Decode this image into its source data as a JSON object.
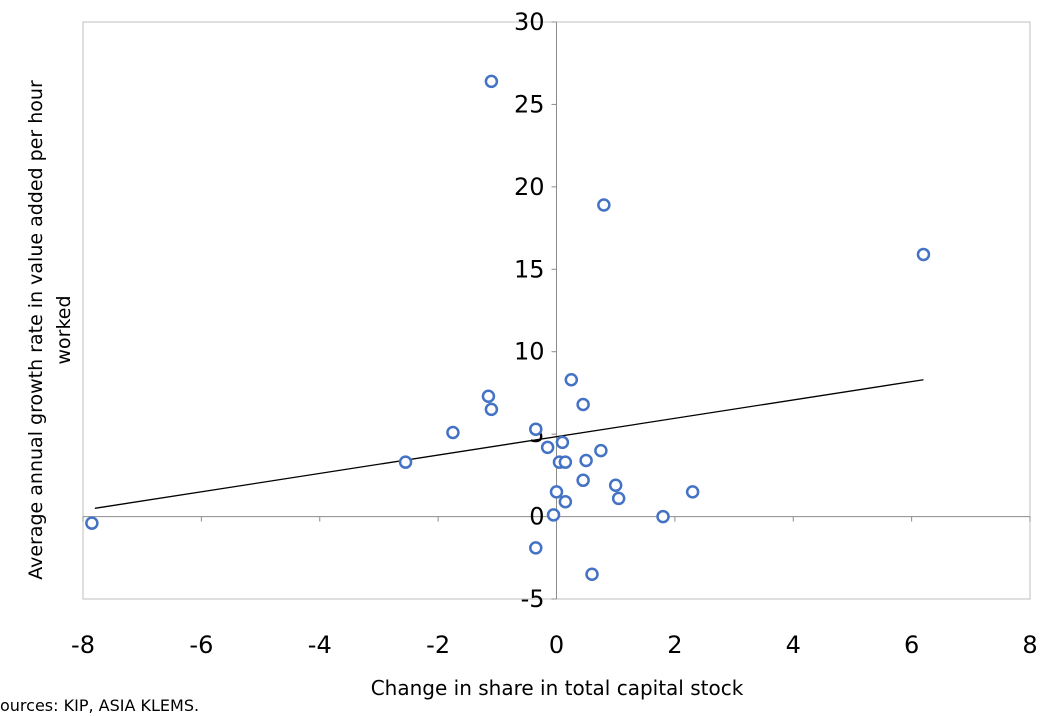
{
  "chart_data": {
    "type": "scatter",
    "title": "",
    "xlabel": "Change in share in total capital stock",
    "ylabel_lines": [
      "Average annual growth rate in value added per hour",
      "worked"
    ],
    "xlim": [
      -8,
      8
    ],
    "ylim": [
      -5,
      30
    ],
    "x_ticks": [
      -8,
      -6,
      -4,
      -2,
      0,
      2,
      4,
      6,
      8
    ],
    "y_ticks": [
      -5,
      0,
      5,
      10,
      15,
      20,
      25,
      30
    ],
    "grid": false,
    "marker_color": "#4472C4",
    "trendline_color": "#000000",
    "trendline": {
      "x": [
        -7.8,
        6.2
      ],
      "y": [
        0.5,
        8.3
      ]
    },
    "points": [
      {
        "x": -7.85,
        "y": -0.4
      },
      {
        "x": -2.55,
        "y": 3.3
      },
      {
        "x": -1.75,
        "y": 5.1
      },
      {
        "x": -1.15,
        "y": 7.3
      },
      {
        "x": -1.1,
        "y": 6.5
      },
      {
        "x": -1.1,
        "y": 26.4
      },
      {
        "x": -0.35,
        "y": 5.3
      },
      {
        "x": -0.15,
        "y": 4.2
      },
      {
        "x": -0.05,
        "y": 0.1
      },
      {
        "x": 0.0,
        "y": 1.5
      },
      {
        "x": 0.05,
        "y": 3.3
      },
      {
        "x": 0.1,
        "y": 4.5
      },
      {
        "x": 0.15,
        "y": 3.3
      },
      {
        "x": 0.15,
        "y": 0.9
      },
      {
        "x": 0.25,
        "y": 8.3
      },
      {
        "x": 0.45,
        "y": 6.8
      },
      {
        "x": 0.45,
        "y": 2.2
      },
      {
        "x": 0.5,
        "y": 3.4
      },
      {
        "x": 0.75,
        "y": 4.0
      },
      {
        "x": 0.8,
        "y": 18.9
      },
      {
        "x": 0.6,
        "y": -3.5
      },
      {
        "x": -0.35,
        "y": -1.9
      },
      {
        "x": 1.0,
        "y": 1.9
      },
      {
        "x": 1.05,
        "y": 1.1
      },
      {
        "x": 1.8,
        "y": 0.0
      },
      {
        "x": 2.3,
        "y": 1.5
      },
      {
        "x": 6.2,
        "y": 15.9
      }
    ]
  },
  "source_note": "ources: KIP, ASIA KLEMS."
}
